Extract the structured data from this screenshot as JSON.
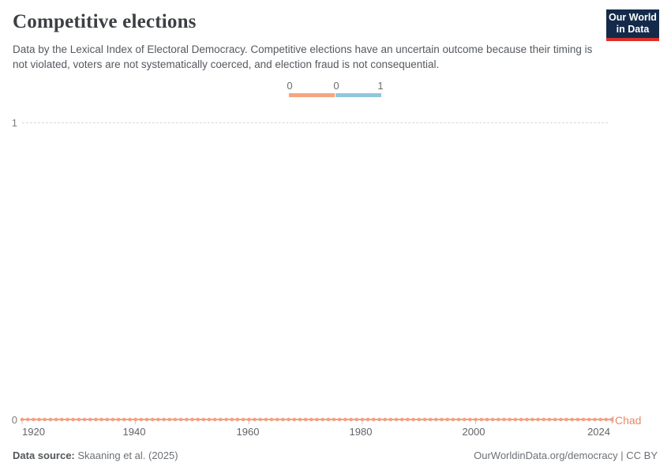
{
  "header": {
    "title": "Competitive elections",
    "subtitle": "Data by the Lexical Index of Electoral Democracy. Competitive elections have an uncertain outcome because their timing is not violated, voters are not systematically coerced, and election fraud is not consequential.",
    "logo": {
      "line1": "Our World",
      "line2": "in Data",
      "bg_color": "#142a4a",
      "accent_color": "#dc2f28"
    }
  },
  "legend": {
    "labels": [
      "0",
      "0",
      "1"
    ],
    "bin_colors": [
      "#F5A583",
      "#93C5DD"
    ]
  },
  "axes": {
    "y_labels": [
      "1",
      "0"
    ],
    "x_labels": [
      "1920",
      "1940",
      "1960",
      "1980",
      "2000",
      "2024"
    ]
  },
  "series_label": "Chad",
  "footer": {
    "source_label": "Data source:",
    "source_value": "Skaaning et al. (2025)",
    "credit": "OurWorldinData.org/democracy | CC BY"
  },
  "chart_data": {
    "type": "line",
    "title": "Competitive elections",
    "subtitle_metric": "Lexical Index of Electoral Democracy — competitive elections (binary)",
    "entity": "Chad",
    "x_ticks": [
      1920,
      1940,
      1960,
      1980,
      2000,
      2024
    ],
    "y_ticks": [
      0,
      1
    ],
    "ylim": [
      0,
      1
    ],
    "grid": "horizontal-dashed",
    "legend_position": "top-center",
    "markers": "circle-every-year",
    "series": [
      {
        "name": "Chad",
        "color": "#F2A183",
        "x_start": 1920,
        "x_end": 2024,
        "step": 1,
        "constant_value": 0
      }
    ],
    "color_scale": [
      {
        "value": 0,
        "color": "#F5A583"
      },
      {
        "value": 1,
        "color": "#93C5DD"
      }
    ]
  }
}
